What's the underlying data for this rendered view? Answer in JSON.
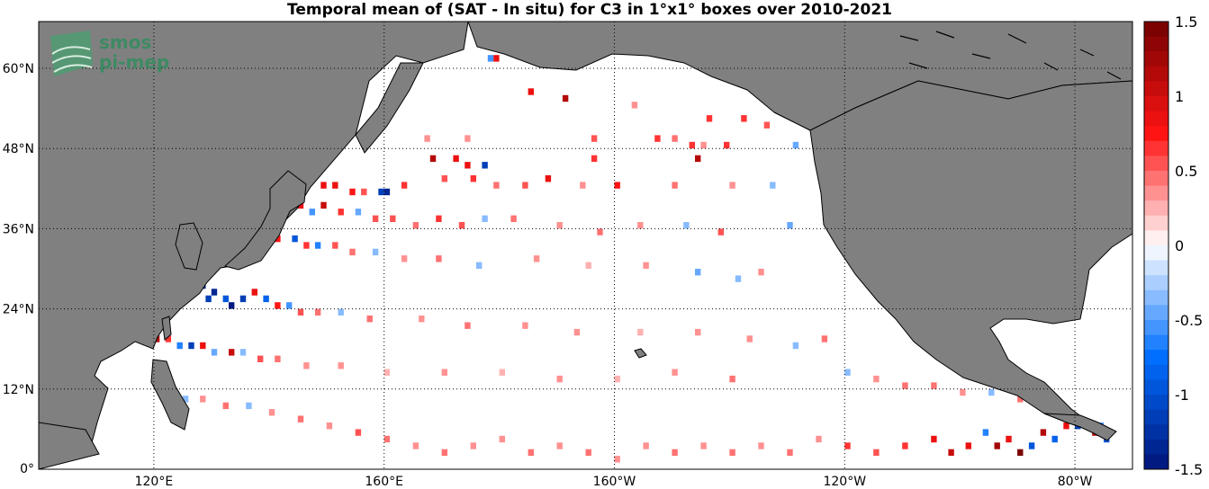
{
  "title": "Temporal mean of (SAT - In situ) for C3 in 1°x1° boxes over 2010-2021",
  "logo": {
    "line1": "smos",
    "line2": "pi-mep"
  },
  "colors": {
    "land": "#808080",
    "ocean": "#ffffff",
    "grid": "#000000",
    "logo": "#3e8a63"
  },
  "map": {
    "lon_range": [
      100,
      290
    ],
    "lat_range": [
      0,
      67
    ],
    "lat_ticks": [
      {
        "value": 0,
        "label": "0°"
      },
      {
        "value": 12,
        "label": "12°N"
      },
      {
        "value": 24,
        "label": "24°N"
      },
      {
        "value": 36,
        "label": "36°N"
      },
      {
        "value": 48,
        "label": "48°N"
      },
      {
        "value": 60,
        "label": "60°N"
      }
    ],
    "lon_ticks": [
      {
        "value": 120,
        "label": "120°E"
      },
      {
        "value": 160,
        "label": "160°E"
      },
      {
        "value": 200,
        "label": "160°W"
      },
      {
        "value": 240,
        "label": "120°W"
      },
      {
        "value": 280,
        "label": "80°W"
      }
    ]
  },
  "colorbar": {
    "range": [
      -1.5,
      1.5
    ],
    "ticks": [
      {
        "value": 1.5,
        "label": "1.5"
      },
      {
        "value": 1,
        "label": "1"
      },
      {
        "value": 0.5,
        "label": "0.5"
      },
      {
        "value": 0,
        "label": "0"
      },
      {
        "value": -0.5,
        "label": "-0.5"
      },
      {
        "value": -1,
        "label": "-1"
      },
      {
        "value": -1.5,
        "label": "-1.5"
      }
    ],
    "levels": 30
  },
  "chart_data": {
    "type": "heatmap",
    "title": "Temporal mean of (SAT - In situ) for C3 in 1°x1° boxes over 2010-2021",
    "cell_size_deg": 1,
    "value_range": [
      -1.5,
      1.5
    ],
    "note": "sample of representative 1°x1° box values (lon °E, lat °N, value)",
    "cells": [
      [
        176,
        64,
        1.0
      ],
      [
        178,
        61,
        -0.6
      ],
      [
        179,
        61,
        0.8
      ],
      [
        212,
        61,
        -1.4
      ],
      [
        185,
        56,
        0.8
      ],
      [
        191,
        55,
        1.1
      ],
      [
        203,
        54,
        0.3
      ],
      [
        216,
        52,
        0.6
      ],
      [
        222,
        52,
        0.6
      ],
      [
        226,
        51,
        0.5
      ],
      [
        167,
        49,
        0.3
      ],
      [
        174,
        49,
        0.3
      ],
      [
        196,
        49,
        0.5
      ],
      [
        207,
        49,
        0.6
      ],
      [
        210,
        49,
        0.4
      ],
      [
        213,
        48,
        0.6
      ],
      [
        215,
        48,
        0.3
      ],
      [
        219,
        48,
        0.6
      ],
      [
        168,
        46,
        1.1
      ],
      [
        172,
        46,
        0.9
      ],
      [
        174,
        45,
        0.8
      ],
      [
        177,
        45,
        -1.1
      ],
      [
        196,
        46,
        0.6
      ],
      [
        214,
        46,
        1.1
      ],
      [
        231,
        48,
        -0.5
      ],
      [
        143,
        43,
        -1.3
      ],
      [
        145,
        43,
        -1.2
      ],
      [
        147,
        43,
        1.1
      ],
      [
        149,
        42,
        0.9
      ],
      [
        151,
        42,
        0.8
      ],
      [
        154,
        41,
        0.7
      ],
      [
        156,
        41,
        0.5
      ],
      [
        159,
        41,
        -1.1
      ],
      [
        160,
        41,
        -1.3
      ],
      [
        163,
        42,
        0.6
      ],
      [
        170,
        43,
        0.5
      ],
      [
        175,
        43,
        0.6
      ],
      [
        179,
        42,
        0.4
      ],
      [
        184,
        42,
        0.5
      ],
      [
        188,
        43,
        0.9
      ],
      [
        194,
        42,
        0.3
      ],
      [
        200,
        42,
        0.7
      ],
      [
        210,
        42,
        0.4
      ],
      [
        220,
        42,
        0.3
      ],
      [
        227,
        42,
        -0.4
      ],
      [
        141,
        40,
        -0.9
      ],
      [
        143,
        40,
        -1.2
      ],
      [
        145,
        39,
        0.8
      ],
      [
        147,
        38,
        -0.6
      ],
      [
        149,
        39,
        1.0
      ],
      [
        152,
        38,
        0.6
      ],
      [
        155,
        38,
        -0.5
      ],
      [
        158,
        37,
        0.5
      ],
      [
        161,
        37,
        0.5
      ],
      [
        165,
        36,
        0.4
      ],
      [
        169,
        37,
        0.6
      ],
      [
        173,
        36,
        0.5
      ],
      [
        177,
        37,
        -0.4
      ],
      [
        182,
        37,
        0.4
      ],
      [
        190,
        36,
        0.3
      ],
      [
        197,
        35,
        0.4
      ],
      [
        204,
        36,
        0.3
      ],
      [
        212,
        36,
        -0.3
      ],
      [
        218,
        35,
        0.5
      ],
      [
        230,
        36,
        -0.5
      ],
      [
        131,
        37,
        -1.1
      ],
      [
        132,
        36,
        -0.7
      ],
      [
        139,
        35,
        -0.8
      ],
      [
        141,
        34,
        0.7
      ],
      [
        144,
        34,
        -0.9
      ],
      [
        146,
        33,
        0.6
      ],
      [
        148,
        33,
        -0.7
      ],
      [
        151,
        33,
        0.5
      ],
      [
        154,
        32,
        0.4
      ],
      [
        158,
        32,
        -0.4
      ],
      [
        163,
        31,
        0.3
      ],
      [
        169,
        31,
        0.4
      ],
      [
        176,
        30,
        -0.3
      ],
      [
        186,
        31,
        0.3
      ],
      [
        195,
        30,
        0.2
      ],
      [
        205,
        30,
        0.3
      ],
      [
        214,
        29,
        -0.5
      ],
      [
        221,
        28,
        -0.4
      ],
      [
        225,
        29,
        0.3
      ],
      [
        126,
        26,
        -0.9
      ],
      [
        128,
        27,
        -1.4
      ],
      [
        129,
        25,
        -1.2
      ],
      [
        130,
        26,
        -1.3
      ],
      [
        132,
        25,
        -1.0
      ],
      [
        133,
        24,
        -1.5
      ],
      [
        135,
        25,
        -1.2
      ],
      [
        137,
        26,
        0.9
      ],
      [
        139,
        25,
        -0.8
      ],
      [
        141,
        24,
        0.7
      ],
      [
        143,
        24,
        -0.6
      ],
      [
        145,
        23,
        0.5
      ],
      [
        148,
        23,
        0.4
      ],
      [
        152,
        23,
        -0.3
      ],
      [
        157,
        22,
        0.4
      ],
      [
        166,
        22,
        0.3
      ],
      [
        174,
        21,
        0.4
      ],
      [
        184,
        21,
        0.3
      ],
      [
        193,
        20,
        0.3
      ],
      [
        204,
        20,
        0.2
      ],
      [
        214,
        20,
        0.3
      ],
      [
        223,
        19,
        0.3
      ],
      [
        231,
        18,
        -0.3
      ],
      [
        236,
        19,
        0.4
      ],
      [
        117,
        19,
        0.9
      ],
      [
        118,
        19,
        1.2
      ],
      [
        120,
        19,
        1.1
      ],
      [
        122,
        19,
        0.6
      ],
      [
        124,
        18,
        -0.7
      ],
      [
        126,
        18,
        -1.1
      ],
      [
        128,
        18,
        0.8
      ],
      [
        130,
        17,
        -0.5
      ],
      [
        133,
        17,
        1.0
      ],
      [
        135,
        17,
        -0.4
      ],
      [
        138,
        16,
        0.5
      ],
      [
        141,
        16,
        0.4
      ],
      [
        146,
        15,
        0.3
      ],
      [
        152,
        15,
        0.3
      ],
      [
        160,
        14,
        0.2
      ],
      [
        170,
        14,
        0.3
      ],
      [
        180,
        14,
        0.2
      ],
      [
        190,
        13,
        0.3
      ],
      [
        200,
        13,
        0.2
      ],
      [
        210,
        14,
        0.3
      ],
      [
        220,
        13,
        0.4
      ],
      [
        240,
        14,
        -0.4
      ],
      [
        245,
        13,
        0.3
      ],
      [
        250,
        12,
        0.4
      ],
      [
        255,
        12,
        0.4
      ],
      [
        260,
        11,
        0.3
      ],
      [
        265,
        11,
        -0.3
      ],
      [
        270,
        10,
        0.4
      ],
      [
        123,
        11,
        0.5
      ],
      [
        125,
        10,
        -0.4
      ],
      [
        128,
        10,
        0.3
      ],
      [
        132,
        9,
        0.4
      ],
      [
        136,
        9,
        -0.3
      ],
      [
        140,
        8,
        0.3
      ],
      [
        145,
        7,
        0.4
      ],
      [
        150,
        6,
        0.3
      ],
      [
        155,
        5,
        0.5
      ],
      [
        160,
        4,
        0.4
      ],
      [
        165,
        3,
        0.3
      ],
      [
        170,
        2,
        0.4
      ],
      [
        175,
        3,
        0.3
      ],
      [
        180,
        4,
        0.3
      ],
      [
        185,
        2,
        0.4
      ],
      [
        190,
        3,
        0.3
      ],
      [
        195,
        2,
        0.4
      ],
      [
        200,
        1,
        0.3
      ],
      [
        205,
        3,
        0.3
      ],
      [
        210,
        2,
        0.4
      ],
      [
        215,
        3,
        0.3
      ],
      [
        220,
        2,
        0.4
      ],
      [
        225,
        3,
        0.3
      ],
      [
        230,
        2,
        0.4
      ],
      [
        235,
        4,
        0.3
      ],
      [
        240,
        3,
        0.6
      ],
      [
        245,
        2,
        0.5
      ],
      [
        250,
        3,
        0.6
      ],
      [
        255,
        4,
        0.8
      ],
      [
        258,
        2,
        1.0
      ],
      [
        261,
        3,
        0.9
      ],
      [
        264,
        5,
        -0.7
      ],
      [
        266,
        3,
        1.2
      ],
      [
        268,
        4,
        0.8
      ],
      [
        270,
        2,
        1.4
      ],
      [
        272,
        3,
        -0.9
      ],
      [
        274,
        5,
        1.1
      ],
      [
        276,
        4,
        -0.8
      ],
      [
        278,
        6,
        0.9
      ],
      [
        280,
        6,
        -1.2
      ],
      [
        282,
        6,
        1.3
      ],
      [
        283,
        5,
        1.1
      ],
      [
        284,
        6,
        -0.6
      ],
      [
        285,
        4,
        -0.9
      ]
    ]
  }
}
